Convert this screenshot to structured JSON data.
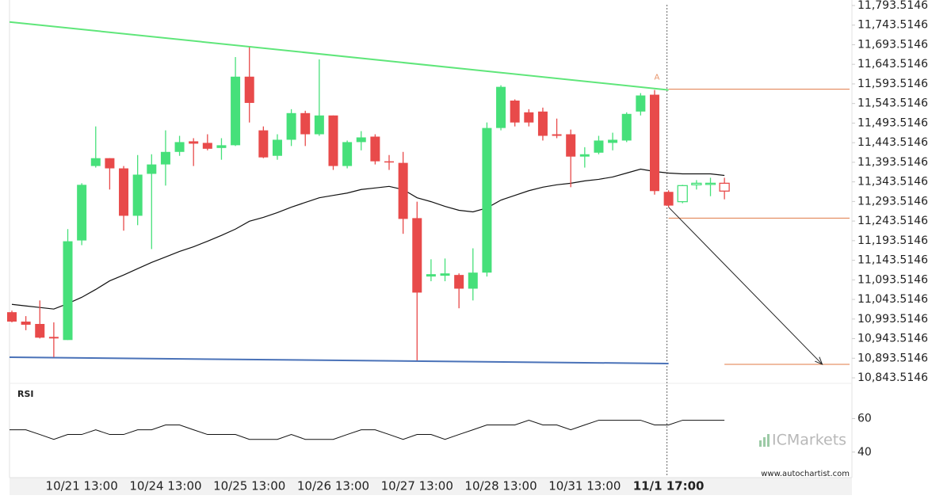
{
  "chart_data": {
    "type": "candlestick",
    "categories": [
      null,
      null,
      null,
      null,
      null,
      "10/21 13:00",
      null,
      null,
      null,
      null,
      null,
      "10/24 13:00",
      null,
      null,
      null,
      null,
      null,
      "10/25 13:00",
      null,
      null,
      null,
      null,
      null,
      "10/26 13:00",
      null,
      null,
      null,
      null,
      null,
      "10/27 13:00",
      null,
      null,
      null,
      null,
      null,
      "10/28 13:00",
      null,
      null,
      null,
      null,
      null,
      "10/31 13:00",
      null,
      null,
      null,
      null,
      null,
      "11/1 17:00",
      null,
      null,
      null,
      null
    ],
    "open": [
      11011,
      10987,
      10981,
      10948,
      10940,
      11194,
      11384,
      11404,
      11378,
      11257,
      11364,
      11388,
      11420,
      11447,
      11443,
      11430,
      11437,
      11612,
      11475,
      11410,
      11451,
      11519,
      11465,
      11513,
      11384,
      11445,
      11459,
      11396,
      11392,
      11251,
      11102,
      11104,
      11106,
      11071,
      11112,
      11481,
      11551,
      11521,
      11523,
      11465,
      11465,
      11408,
      11418,
      11443,
      11449,
      11523,
      11566,
      11318,
      11293,
      11336,
      11338,
      11340
    ],
    "high": [
      11015,
      11001,
      11041,
      10985,
      11223,
      11340,
      11485,
      11404,
      11384,
      11412,
      11414,
      11475,
      11461,
      11455,
      11465,
      11455,
      11662,
      11687,
      11485,
      11465,
      11529,
      11525,
      11656,
      11513,
      11449,
      11473,
      11465,
      11412,
      11420,
      11293,
      11146,
      11148,
      11110,
      11174,
      11495,
      11590,
      11554,
      11529,
      11533,
      11505,
      11477,
      11432,
      11461,
      11469,
      11521,
      11570,
      11578,
      11322,
      11336,
      11348,
      11354,
      11354
    ],
    "low": [
      10985,
      10965,
      10944,
      10896,
      10940,
      11182,
      11380,
      11324,
      11219,
      11233,
      11172,
      11334,
      11410,
      11384,
      11424,
      11400,
      11435,
      11495,
      11404,
      11400,
      11435,
      11435,
      11461,
      11374,
      11378,
      11424,
      11388,
      11374,
      11211,
      10888,
      11090,
      11090,
      11021,
      11041,
      11102,
      11475,
      11485,
      11485,
      11449,
      11455,
      11330,
      11380,
      11414,
      11424,
      11445,
      11513,
      11311,
      11279,
      11289,
      11324,
      11307,
      11299
    ],
    "close": [
      10987,
      10979,
      10946,
      10944,
      11192,
      11336,
      11404,
      11378,
      11257,
      11362,
      11388,
      11420,
      11445,
      11441,
      11428,
      11437,
      11612,
      11545,
      11406,
      11451,
      11519,
      11465,
      11513,
      11384,
      11445,
      11457,
      11396,
      11394,
      11249,
      11061,
      11108,
      11110,
      11071,
      11112,
      11481,
      11586,
      11495,
      11495,
      11461,
      11461,
      11408,
      11414,
      11449,
      11451,
      11517,
      11564,
      11320,
      11283,
      11334,
      11340,
      11340,
      11320
    ],
    "up_color": "#46e07a",
    "down_color": "#e84a4a",
    "hollow_from": 48,
    "moving_average": {
      "color": "#111111",
      "values": [
        11031,
        11027,
        11023,
        11019,
        11033,
        11049,
        11069,
        11091,
        11106,
        11122,
        11138,
        11152,
        11166,
        11178,
        11192,
        11207,
        11223,
        11243,
        11253,
        11265,
        11279,
        11291,
        11303,
        11309,
        11315,
        11324,
        11328,
        11332,
        11324,
        11303,
        11293,
        11281,
        11271,
        11267,
        11277,
        11297,
        11309,
        11321,
        11330,
        11336,
        11340,
        11346,
        11350,
        11356,
        11366,
        11376,
        11370,
        11366,
        11364,
        11364,
        11364,
        11360
      ]
    },
    "ylim": [
      10829.4,
      11807.6
    ],
    "yticks": [
      {
        "value": 10843.5146,
        "label": "10,843.5146"
      },
      {
        "value": 10893.5146,
        "label": "10,893.5146"
      },
      {
        "value": 10943.5146,
        "label": "10,943.5146"
      },
      {
        "value": 10993.5146,
        "label": "10,993.5146"
      },
      {
        "value": 11043.5146,
        "label": "11,043.5146"
      },
      {
        "value": 11093.5146,
        "label": "11,093.5146"
      },
      {
        "value": 11143.5146,
        "label": "11,143.5146"
      },
      {
        "value": 11193.5146,
        "label": "11,193.5146"
      },
      {
        "value": 11243.5146,
        "label": "11,243.5146"
      },
      {
        "value": 11293.5146,
        "label": "11,293.5146"
      },
      {
        "value": 11343.5146,
        "label": "11,343.5146"
      },
      {
        "value": 11393.5146,
        "label": "11,393.5146"
      },
      {
        "value": 11443.5146,
        "label": "11,443.5146"
      },
      {
        "value": 11493.5146,
        "label": "11,493.5146"
      },
      {
        "value": 11543.5146,
        "label": "11,543.5146"
      },
      {
        "value": 11593.5146,
        "label": "11,593.5146"
      },
      {
        "value": 11643.5146,
        "label": "11,643.5146"
      },
      {
        "value": 11693.5146,
        "label": "11,693.5146"
      },
      {
        "value": 11743.5146,
        "label": "11,743.5146"
      },
      {
        "value": 11793.5146,
        "label": "11,793.5146"
      }
    ],
    "trendlines": [
      {
        "color": "#5fe67a",
        "start": [
          0,
          11751
        ],
        "end": [
          47,
          11578
        ]
      },
      {
        "color": "#4a72b8",
        "start": [
          0,
          10896
        ],
        "end": [
          47,
          10880
        ]
      }
    ],
    "levels": [
      {
        "color": "#e07a45",
        "value": 11580,
        "from": 47
      },
      {
        "color": "#e07a45",
        "value": 11251,
        "from": 47
      },
      {
        "color": "#e07a45",
        "value": 10878,
        "from": 51
      }
    ],
    "arrow": {
      "color": "#222222",
      "from": [
        47,
        11279
      ],
      "to": [
        58,
        10878
      ]
    },
    "annotation": {
      "text": "A",
      "color": "#e8956b",
      "index": 46,
      "value": 11590
    },
    "rsi": {
      "label": "RSI",
      "color": "#111111",
      "ylim": [
        26.2,
        81
      ],
      "yticks": [
        40,
        60
      ],
      "values": [
        53.3,
        53.3,
        50.5,
        47.6,
        50.5,
        50.5,
        53.3,
        50.5,
        50.5,
        53.3,
        53.3,
        56.2,
        56.2,
        53.3,
        50.5,
        50.5,
        50.5,
        47.6,
        47.6,
        47.6,
        50.5,
        47.6,
        47.6,
        47.6,
        50.5,
        53.3,
        53.3,
        50.5,
        47.6,
        50.5,
        50.5,
        47.6,
        50.5,
        53.3,
        56.2,
        56.2,
        56.2,
        59,
        56.2,
        56.2,
        53.3,
        56.2,
        59,
        59,
        59,
        59,
        56.2,
        56.2,
        59,
        59,
        59,
        59
      ]
    },
    "watermark": "ICMarkets",
    "source": "www.autochartist.com"
  }
}
